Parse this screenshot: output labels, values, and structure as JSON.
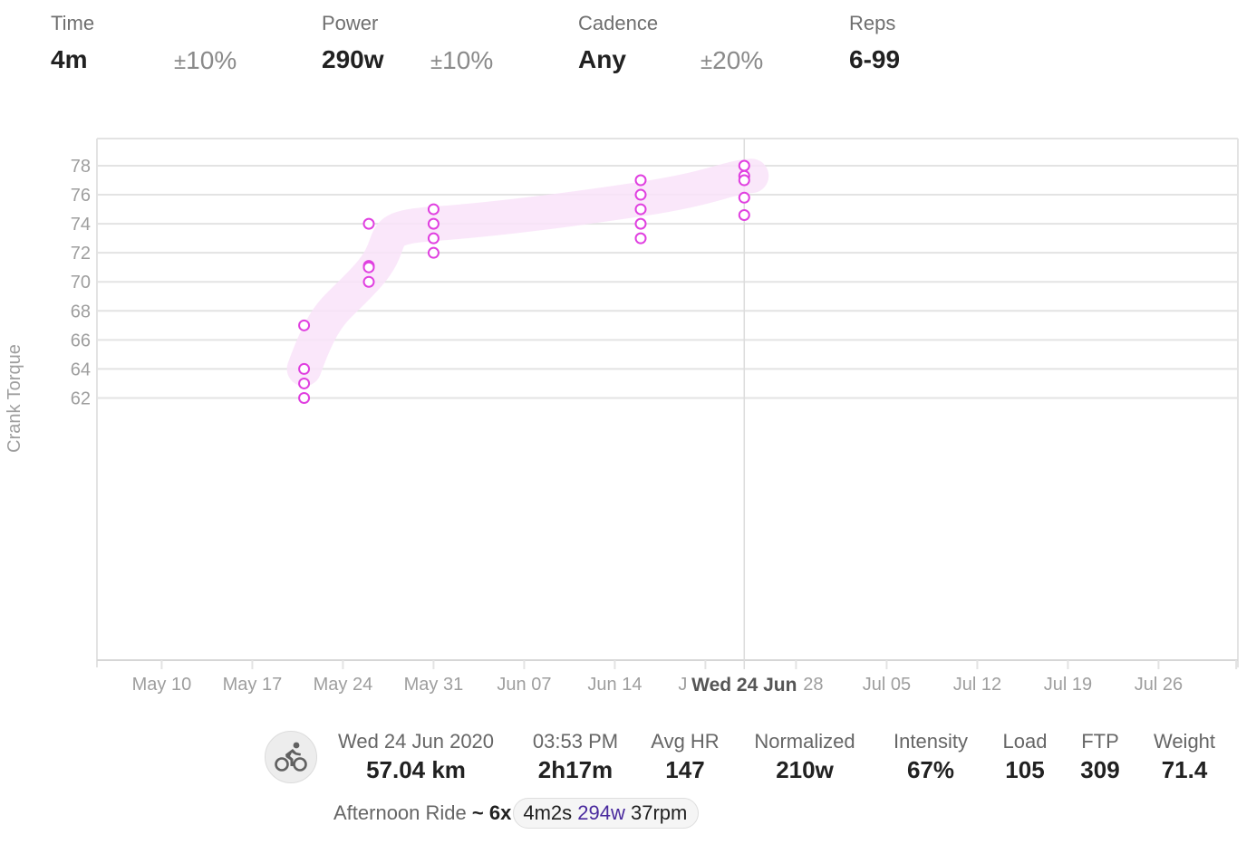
{
  "filters": [
    {
      "label": "Time",
      "value": "4m",
      "tolerance": "10%",
      "tolerance_prefix": "±"
    },
    {
      "label": "Power",
      "value": "290w",
      "tolerance": "10%",
      "tolerance_prefix": "±"
    },
    {
      "label": "Cadence",
      "value": "Any",
      "tolerance": "20%",
      "tolerance_prefix": "±"
    },
    {
      "label": "Reps",
      "value": "6-99"
    }
  ],
  "chart": {
    "y_axis_label": "Crank Torque",
    "highlight_label": "Wed 24 Jun",
    "colors": {
      "points": "#e040e0",
      "trend": "#f9e3f9",
      "grid": "#e3e3e3",
      "tick_text": "#9e9e9e",
      "cursor_line": "#dcdcdc"
    }
  },
  "chart_data": {
    "type": "scatter",
    "title": "",
    "xlabel": "",
    "ylabel": "Crank Torque",
    "ylim": [
      61,
      79
    ],
    "y_ticks": [
      62,
      64,
      66,
      68,
      70,
      72,
      74,
      76,
      78
    ],
    "x_tick_labels": [
      "May 10",
      "May 17",
      "May 24",
      "May 31",
      "Jun 07",
      "Jun 14",
      "Jun 21",
      "Jun 28",
      "Jul 05",
      "Jul 12",
      "Jul 19",
      "Jul 26"
    ],
    "x_range": [
      "May 05",
      "Aug 01"
    ],
    "grid": true,
    "legend": null,
    "highlighted_date": "Wed 24 Jun",
    "series": [
      {
        "name": "Crank Torque",
        "points": [
          {
            "x": "May 21",
            "y": 67
          },
          {
            "x": "May 21",
            "y": 64
          },
          {
            "x": "May 21",
            "y": 63
          },
          {
            "x": "May 21",
            "y": 62
          },
          {
            "x": "May 26",
            "y": 74
          },
          {
            "x": "May 26",
            "y": 71.1
          },
          {
            "x": "May 26",
            "y": 71
          },
          {
            "x": "May 26",
            "y": 70
          },
          {
            "x": "May 31",
            "y": 75
          },
          {
            "x": "May 31",
            "y": 74
          },
          {
            "x": "May 31",
            "y": 73
          },
          {
            "x": "May 31",
            "y": 72
          },
          {
            "x": "Jun 16",
            "y": 77
          },
          {
            "x": "Jun 16",
            "y": 76
          },
          {
            "x": "Jun 16",
            "y": 75
          },
          {
            "x": "Jun 16",
            "y": 74
          },
          {
            "x": "Jun 16",
            "y": 73
          },
          {
            "x": "Jun 24",
            "y": 78
          },
          {
            "x": "Jun 24",
            "y": 77.3
          },
          {
            "x": "Jun 24",
            "y": 77
          },
          {
            "x": "Jun 24",
            "y": 75.8
          },
          {
            "x": "Jun 24",
            "y": 74.6
          }
        ]
      },
      {
        "name": "Trend",
        "type": "line",
        "points": [
          {
            "x": "May 21",
            "y": 64
          },
          {
            "x": "May 26",
            "y": 70.5
          },
          {
            "x": "May 31",
            "y": 74
          },
          {
            "x": "Jun 16",
            "y": 75.2
          },
          {
            "x": "Jun 24",
            "y": 77.3
          }
        ]
      }
    ]
  },
  "activity": {
    "icon": "bicycle-icon",
    "stats": [
      {
        "key": "Wed 24 Jun 2020",
        "value": "57.04 km"
      },
      {
        "key": "03:53 PM",
        "value": "2h17m"
      },
      {
        "key": "Avg HR",
        "value": "147"
      },
      {
        "key": "Normalized",
        "value": "210w"
      },
      {
        "key": "Intensity",
        "value": "67%"
      },
      {
        "key": "Load",
        "value": "105"
      },
      {
        "key": "FTP",
        "value": "309"
      },
      {
        "key": "Weight",
        "value": "71.4"
      }
    ],
    "name": "Afternoon Ride",
    "separator": "~",
    "reps": "6x",
    "interval": {
      "duration": "4m2s",
      "power": "294w",
      "cadence": "37rpm"
    }
  }
}
